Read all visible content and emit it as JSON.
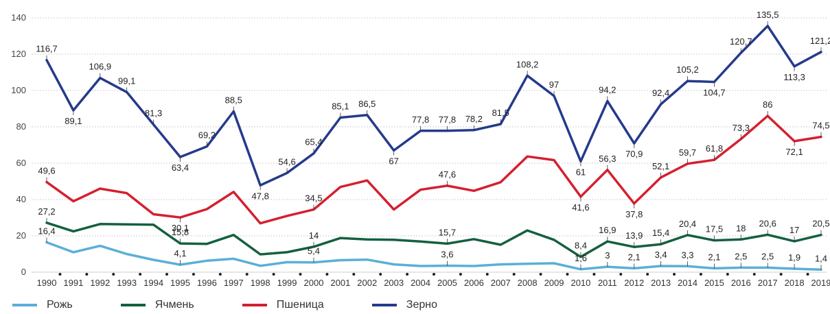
{
  "chart_data": {
    "type": "line",
    "x": [
      "1990",
      "1991",
      "1992",
      "1993",
      "1994",
      "1995",
      "1996",
      "1997",
      "1998",
      "1999",
      "2000",
      "2001",
      "2002",
      "2003",
      "2004",
      "2005",
      "2006",
      "2007",
      "2008",
      "2009",
      "2010",
      "2011",
      "2012",
      "2013",
      "2014",
      "2015",
      "2016",
      "2017",
      "2018",
      "2019"
    ],
    "ylim": [
      0,
      140
    ],
    "yticks": [
      "0",
      "20",
      "40",
      "60",
      "80",
      "100",
      "120",
      "140"
    ],
    "grid": "horizontal",
    "legend_position": "bottom-left",
    "series": [
      {
        "name": "Рожь",
        "color": "#5aafd8",
        "values": [
          16.4,
          11,
          14.5,
          10,
          6.8,
          4.1,
          6.3,
          7.4,
          3.5,
          5.5,
          5.4,
          6.6,
          6.9,
          4.3,
          3.4,
          3.6,
          3.4,
          4.3,
          4.6,
          4.9,
          1.6,
          3,
          2.1,
          3.4,
          3.3,
          2.1,
          2.5,
          2.5,
          1.9,
          1.4
        ],
        "labels": {
          "0": "16,4",
          "5": "4,1",
          "10": "5,4",
          "15": "3,6",
          "20": "1,6",
          "21": "3",
          "22": "2,1",
          "23": "3,4",
          "24": "3,3",
          "25": "2,1",
          "26": "2,5",
          "27": "2,5",
          "28": "1,9",
          "29": "1,4"
        }
      },
      {
        "name": "Ячмень",
        "color": "#14603f",
        "values": [
          27.2,
          22.5,
          26.5,
          26.3,
          26.1,
          15.8,
          15.6,
          20.5,
          9.8,
          11,
          14,
          18.8,
          18,
          17.8,
          16.9,
          15.7,
          18.2,
          15.1,
          23,
          17.8,
          8.4,
          16.9,
          13.9,
          15.4,
          20.4,
          17.5,
          18,
          20.6,
          17,
          20.5
        ],
        "labels": {
          "0": "27,2",
          "5": "15,8",
          "10": "14",
          "15": "15,7",
          "20": "8,4",
          "21": "16,9",
          "22": "13,9",
          "23": "15,4",
          "24": "20,4",
          "25": "17,5",
          "26": "18",
          "27": "20,6",
          "28": "17",
          "29": "20,5"
        }
      },
      {
        "name": "Пшеница",
        "color": "#d42030",
        "values": [
          49.6,
          39,
          46,
          43.5,
          31.9,
          30.1,
          34.7,
          44.2,
          26.9,
          31,
          34.5,
          46.9,
          50.5,
          34.5,
          45.4,
          47.6,
          44.8,
          49.5,
          63.7,
          61.7,
          41.6,
          56.3,
          37.8,
          52.1,
          59.7,
          61.8,
          73.3,
          86,
          72.1,
          74.5
        ],
        "labels": {
          "0": "49,6",
          "5": "30,1",
          "10": "34,5",
          "15": "47,6",
          "20": "41,6",
          "21": "56,3",
          "22": "37,8",
          "23": "52,1",
          "24": "59,7",
          "25": "61,8",
          "26": "73,3",
          "27": "86",
          "28": "72,1",
          "29": "74,5"
        }
      },
      {
        "name": "Зерно",
        "color": "#253a8c",
        "values": [
          116.7,
          89.1,
          106.9,
          99.1,
          81.3,
          63.4,
          69.2,
          88.5,
          47.8,
          54.6,
          65.4,
          85.1,
          86.5,
          67,
          77.8,
          77.8,
          78.2,
          81.5,
          108.2,
          97,
          61,
          94.2,
          70.9,
          92.4,
          105.2,
          104.7,
          120.7,
          135.5,
          113.3,
          121.2
        ],
        "labels": {
          "0": "116,7",
          "1": "89,1",
          "2": "106,9",
          "3": "99,1",
          "4": "81,3",
          "5": "63,4",
          "6": "69,2",
          "7": "88,5",
          "8": "47,8",
          "9": "54,6",
          "10": "65,4",
          "11": "85,1",
          "12": "86,5",
          "13": "67",
          "14": "77,8",
          "15": "77,8",
          "16": "78,2",
          "17": "81,5",
          "18": "108,2",
          "19": "97",
          "20": "61",
          "21": "94,2",
          "22": "70,9",
          "23": "92,4",
          "24": "105,2",
          "25": "104,7",
          "26": "120,7",
          "27": "135,5",
          "28": "113,3",
          "29": "121,2"
        }
      }
    ]
  }
}
